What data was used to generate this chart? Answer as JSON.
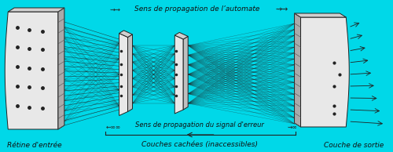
{
  "background_color": "#00d8e8",
  "top_label": "Sens de propagation de l’automate",
  "bottom_label": "Sens de propagation du signal d'erreur",
  "label_retine": "Rétine d'entrée",
  "label_cachees": "Couches cachées (inaccessibles)",
  "label_sortie": "Couche de sortie",
  "line_color": "#222222",
  "text_color": "#111111",
  "font_size_labels": 6.5,
  "font_size_arrows": 6.5,
  "panel_face": "#e8e8e8",
  "panel_side": "#c0c0c0",
  "panel_top": "#d0d0d0"
}
